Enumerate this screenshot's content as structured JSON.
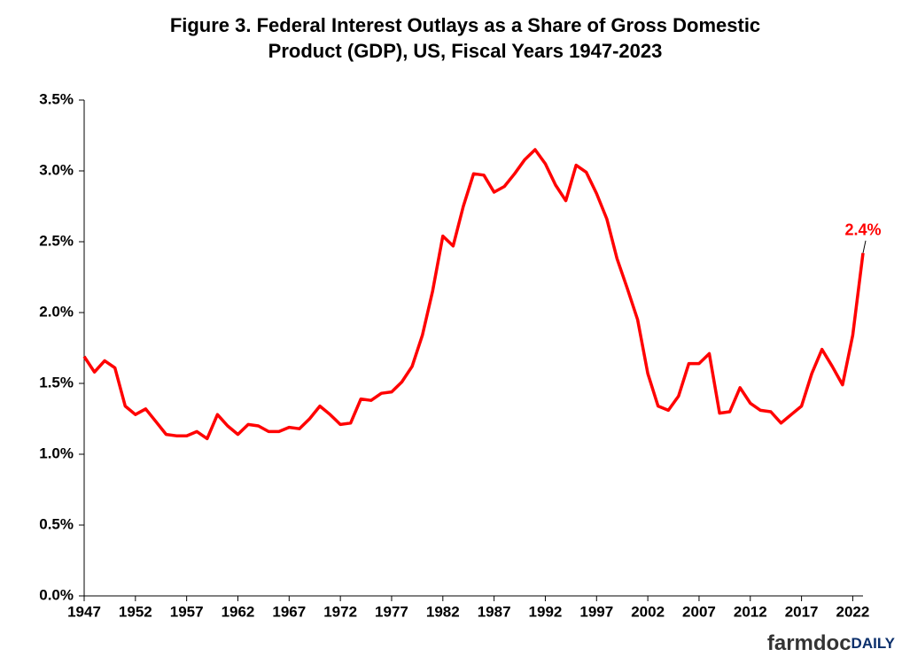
{
  "chart_data": {
    "type": "line",
    "title": [
      "Figure 3.  Federal Interest Outlays as a Share of Gross Domestic",
      "Product (GDP),  US, Fiscal Years 1947-2023"
    ],
    "x": [
      1947,
      1948,
      1949,
      1950,
      1951,
      1952,
      1953,
      1954,
      1955,
      1956,
      1957,
      1958,
      1959,
      1960,
      1961,
      1962,
      1963,
      1964,
      1965,
      1966,
      1967,
      1968,
      1969,
      1970,
      1971,
      1972,
      1973,
      1974,
      1975,
      1976,
      1977,
      1978,
      1979,
      1980,
      1981,
      1982,
      1983,
      1984,
      1985,
      1986,
      1987,
      1988,
      1989,
      1990,
      1991,
      1992,
      1993,
      1994,
      1995,
      1996,
      1997,
      1998,
      1999,
      2000,
      2001,
      2002,
      2003,
      2004,
      2005,
      2006,
      2007,
      2008,
      2009,
      2010,
      2011,
      2012,
      2013,
      2014,
      2015,
      2016,
      2017,
      2018,
      2019,
      2020,
      2021,
      2022,
      2023
    ],
    "series": [
      {
        "name": "Federal Interest Outlays",
        "color": "#ff0000",
        "values": [
          1.69,
          1.58,
          1.66,
          1.61,
          1.34,
          1.28,
          1.32,
          1.23,
          1.14,
          1.13,
          1.13,
          1.16,
          1.11,
          1.28,
          1.2,
          1.14,
          1.21,
          1.2,
          1.16,
          1.16,
          1.19,
          1.18,
          1.25,
          1.34,
          1.28,
          1.21,
          1.22,
          1.39,
          1.38,
          1.43,
          1.44,
          1.51,
          1.62,
          1.84,
          2.15,
          2.54,
          2.47,
          2.75,
          2.98,
          2.97,
          2.85,
          2.89,
          2.98,
          3.08,
          3.15,
          3.05,
          2.9,
          2.79,
          3.04,
          2.99,
          2.84,
          2.66,
          2.38,
          2.17,
          1.95,
          1.57,
          1.34,
          1.31,
          1.41,
          1.64,
          1.64,
          1.71,
          1.29,
          1.3,
          1.47,
          1.36,
          1.31,
          1.3,
          1.22,
          1.28,
          1.34,
          1.57,
          1.74,
          1.62,
          1.49,
          1.84,
          2.42
        ]
      }
    ],
    "xlim": [
      1947,
      2023
    ],
    "xticks": [
      1947,
      1952,
      1957,
      1962,
      1967,
      1972,
      1977,
      1982,
      1987,
      1992,
      1997,
      2002,
      2007,
      2012,
      2017,
      2022
    ],
    "ylim": [
      0,
      3.5
    ],
    "yticks": [
      {
        "value": 0,
        "label": "0.0%"
      },
      {
        "value": 0.5,
        "label": "0.5%"
      },
      {
        "value": 1,
        "label": "1.0%"
      },
      {
        "value": 1.5,
        "label": "1.5%"
      },
      {
        "value": 2,
        "label": "2.0%"
      },
      {
        "value": 2.5,
        "label": "2.5%"
      },
      {
        "value": 3,
        "label": "3.0%"
      },
      {
        "value": 3.5,
        "label": "3.5%"
      }
    ],
    "grid": false,
    "annotation": {
      "label": "2.4%",
      "x": 2023,
      "y": 2.42
    },
    "logo": {
      "main": "farmdoc",
      "accent": "DAILY"
    }
  }
}
